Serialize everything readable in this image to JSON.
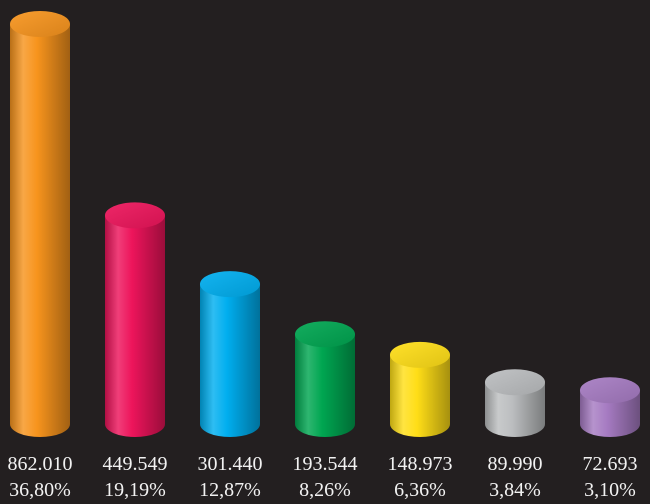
{
  "chart_data": {
    "type": "bar",
    "style": "3d-cylinder",
    "background": "#231f20",
    "categories": [
      "",
      "",
      "",
      "",
      "",
      "",
      ""
    ],
    "values": [
      862010,
      449549,
      301440,
      193544,
      148973,
      89990,
      72693
    ],
    "value_labels": [
      "862.010",
      "449.549",
      "301.440",
      "193.544",
      "148.973",
      "89.990",
      "72.693"
    ],
    "percent_labels": [
      "36,80%",
      "19,19%",
      "12,87%",
      "8,26%",
      "6,36%",
      "3,84%",
      "3,10%"
    ],
    "colors": [
      "#f7941d",
      "#ed145b",
      "#00aeef",
      "#00a651",
      "#ffde17",
      "#bcbec0",
      "#a67bc2"
    ],
    "grid": false,
    "legend": "none",
    "title": "",
    "xlabel": "",
    "ylabel": ""
  }
}
